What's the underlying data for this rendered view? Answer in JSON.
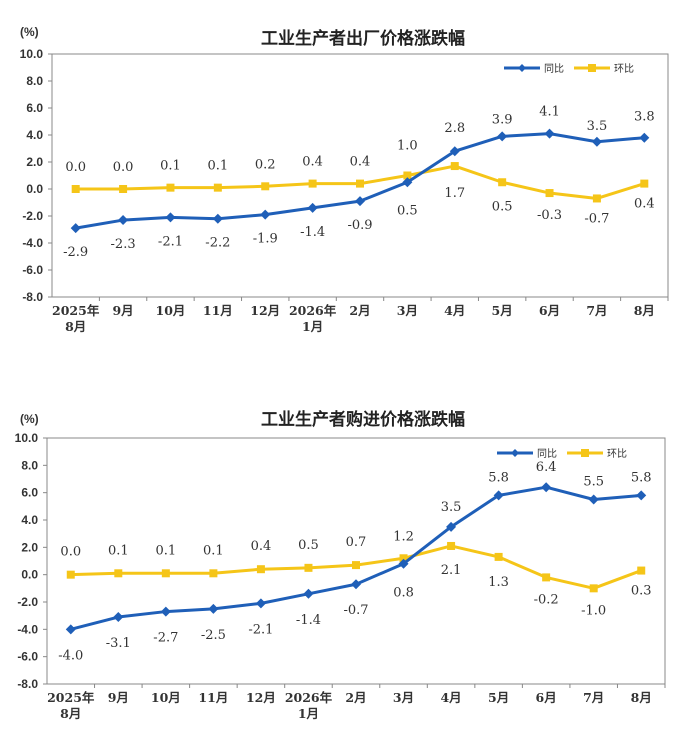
{
  "chart_data": [
    {
      "type": "line",
      "title": "工业生产者出厂价格涨跌幅",
      "unit": "(%)",
      "ylim": [
        -8.0,
        10.0
      ],
      "yticks": [
        "10.0",
        "8.0",
        "6.0",
        "4.0",
        "2.0",
        "0.0",
        "-2.0",
        "-4.0",
        "-6.0",
        "-8.0"
      ],
      "categories": [
        [
          "2025年",
          "8月"
        ],
        [
          "9月"
        ],
        [
          "10月"
        ],
        [
          "11月"
        ],
        [
          "12月"
        ],
        [
          "2026年",
          "1月"
        ],
        [
          "2月"
        ],
        [
          "3月"
        ],
        [
          "4月"
        ],
        [
          "5月"
        ],
        [
          "6月"
        ],
        [
          "7月"
        ],
        [
          "8月"
        ]
      ],
      "legend_position": "top-right",
      "series": [
        {
          "name": "同比",
          "color": "#1f5fb8",
          "marker": "diamond",
          "values": [
            -2.9,
            -2.3,
            -2.1,
            -2.2,
            -1.9,
            -1.4,
            -0.9,
            0.5,
            2.8,
            3.9,
            4.1,
            3.5,
            3.8
          ],
          "labels": [
            "-2.9",
            "-2.3",
            "-2.1",
            "-2.2",
            "-1.9",
            "-1.4",
            "-0.9",
            "0.5",
            "2.8",
            "3.9",
            "4.1",
            "3.5",
            "3.8"
          ]
        },
        {
          "name": "环比",
          "color": "#f5c518",
          "marker": "square",
          "values": [
            0.0,
            0.0,
            0.1,
            0.1,
            0.2,
            0.4,
            0.4,
            1.0,
            1.7,
            0.5,
            -0.3,
            -0.7,
            0.4
          ],
          "labels": [
            "0.0",
            "0.0",
            "0.1",
            "0.1",
            "0.2",
            "0.4",
            "0.4",
            "1.0",
            "1.7",
            "0.5",
            "-0.3",
            "-0.7",
            "0.4"
          ]
        }
      ]
    },
    {
      "type": "line",
      "title": "工业生产者购进价格涨跌幅",
      "unit": "(%)",
      "ylim": [
        -8.0,
        10.0
      ],
      "yticks": [
        "10.0",
        "8.0",
        "6.0",
        "4.0",
        "2.0",
        "0.0",
        "-2.0",
        "-4.0",
        "-6.0",
        "-8.0"
      ],
      "categories": [
        [
          "2025年",
          "8月"
        ],
        [
          "9月"
        ],
        [
          "10月"
        ],
        [
          "11月"
        ],
        [
          "12月"
        ],
        [
          "2026年",
          "1月"
        ],
        [
          "2月"
        ],
        [
          "3月"
        ],
        [
          "4月"
        ],
        [
          "5月"
        ],
        [
          "6月"
        ],
        [
          "7月"
        ],
        [
          "8月"
        ]
      ],
      "legend_position": "top-right",
      "series": [
        {
          "name": "同比",
          "color": "#1f5fb8",
          "marker": "diamond",
          "values": [
            -4.0,
            -3.1,
            -2.7,
            -2.5,
            -2.1,
            -1.4,
            -0.7,
            0.8,
            3.5,
            5.8,
            6.4,
            5.5,
            5.8
          ],
          "labels": [
            "-4.0",
            "-3.1",
            "-2.7",
            "-2.5",
            "-2.1",
            "-1.4",
            "-0.7",
            "0.8",
            "3.5",
            "5.8",
            "6.4",
            "5.5",
            "5.8"
          ]
        },
        {
          "name": "环比",
          "color": "#f5c518",
          "marker": "square",
          "values": [
            0.0,
            0.1,
            0.1,
            0.1,
            0.4,
            0.5,
            0.7,
            1.2,
            2.1,
            1.3,
            -0.2,
            -1.0,
            0.3
          ],
          "labels": [
            "0.0",
            "0.1",
            "0.1",
            "0.1",
            "0.4",
            "0.5",
            "0.7",
            "1.2",
            "2.1",
            "1.3",
            "-0.2",
            "-1.0",
            "0.3"
          ]
        }
      ]
    }
  ]
}
